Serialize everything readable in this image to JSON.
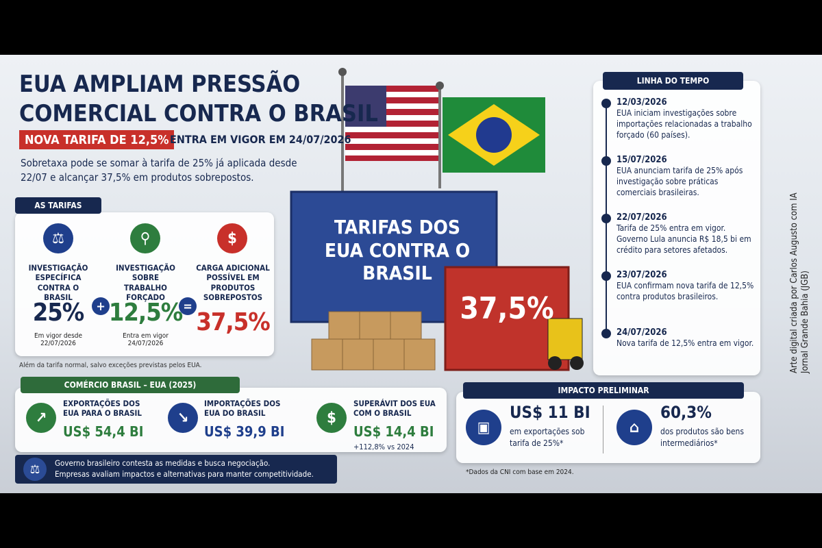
{
  "header": {
    "title_lines": [
      "EUA AMPLIAM PRESSÃO",
      "COMERCIAL CONTRA O BRASIL"
    ],
    "highlight": "NOVA TARIFA DE 12,5%",
    "highlight_rest": "ENTRA EM VIGOR EM 24/07/2026",
    "subtitle": "Sobretaxa pode se somar à tarifa de 25% já aplicada desde 22/07 e alcançar 37,5% em produtos sobrepostos."
  },
  "tariffs": {
    "tag": "AS TARIFAS",
    "items": [
      {
        "label": "INVESTIGAÇÃO ESPECÍFICA CONTRA O BRASIL",
        "value": "25%",
        "note": "Em vigor desde 22/07/2026"
      },
      {
        "label": "INVESTIGAÇÃO SOBRE TRABALHO FORÇADO",
        "value": "12,5%",
        "note": "Entra em vigor 24/07/2026"
      },
      {
        "label": "CARGA ADICIONAL POSSÍVEL EM PRODUTOS SOBREPOSTOS",
        "value": "37,5%"
      }
    ],
    "operators": [
      "+",
      "="
    ],
    "footnote": "Além da tarifa normal, salvo exceções previstas pelos EUA."
  },
  "illustration": {
    "container_text": "TARIFAS DOS EUA CONTRA O BRASIL",
    "red_container_text": "37,5%"
  },
  "trade": {
    "tag": "COMÉRCIO BRASIL – EUA (2025)",
    "items": [
      {
        "label": "EXPORTAÇÕES DOS EUA PARA O BRASIL",
        "value": "US$ 54,4 BI"
      },
      {
        "label": "IMPORTAÇÕES DOS EUA DO BRASIL",
        "value": "US$ 39,9 BI"
      },
      {
        "label": "SUPERÁVIT DOS EUA COM O BRASIL",
        "value": "US$ 14,4 BI",
        "note": "+112,8% vs 2024"
      }
    ]
  },
  "note": {
    "lines": [
      "Governo brasileiro contesta as medidas e busca negociação.",
      "Empresas avaliam impactos e alternativas para manter competitividade."
    ]
  },
  "timeline": {
    "tag": "LINHA DO TEMPO",
    "events": [
      {
        "date": "12/03/2026",
        "text": "EUA iniciam investigações sobre importações relacionadas a trabalho forçado (60 países)."
      },
      {
        "date": "15/07/2026",
        "text": "EUA anunciam tarifa de 25% após investigação sobre práticas comerciais brasileiras."
      },
      {
        "date": "22/07/2026",
        "text": "Tarifa de 25% entra em vigor. Governo Lula anuncia R$ 18,5 bi em crédito para setores afetados."
      },
      {
        "date": "23/07/2026",
        "text": "EUA confirmam nova tarifa de 12,5% contra produtos brasileiros."
      },
      {
        "date": "24/07/2026",
        "text": "Nova tarifa de 12,5% entra em vigor."
      }
    ]
  },
  "impact": {
    "tag": "IMPACTO PRELIMINAR",
    "items": [
      {
        "value": "US$ 11 BI",
        "text": "em exportações sob tarifa de 25%*"
      },
      {
        "value": "60,3%",
        "text": "dos produtos são bens intermediários*"
      }
    ],
    "footnote": "*Dados da CNI com base em 2024."
  },
  "credit": {
    "lines": [
      "Arte digital criada por Carlos Augusto com IA",
      "Jornal Grande Bahia (JGB)"
    ]
  }
}
